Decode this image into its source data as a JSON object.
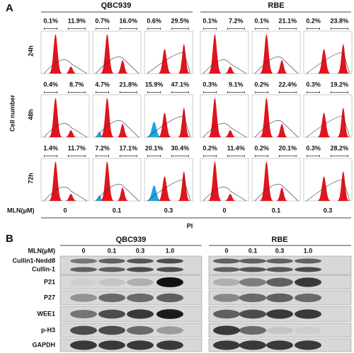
{
  "panel_a": {
    "label": "A",
    "groups": [
      "QBC939",
      "RBE"
    ],
    "y_label": "Cell number",
    "x_label": "PI",
    "dose_label": "MLN(μM)",
    "doses": [
      "0",
      "0.1",
      "0.3",
      "0",
      "0.1",
      "0.3"
    ],
    "rows": [
      {
        "time": "24h",
        "cells": [
          [
            "0.1%",
            "11.9%"
          ],
          [
            "0.7%",
            "16.0%"
          ],
          [
            "0.6%",
            "29.5%"
          ],
          [
            "0.1%",
            "7.2%"
          ],
          [
            "0.1%",
            "21.1%"
          ],
          [
            "0.2%",
            "23.8%"
          ]
        ]
      },
      {
        "time": "48h",
        "cells": [
          [
            "0.4%",
            "8.7%"
          ],
          [
            "4.7%",
            "21.8%"
          ],
          [
            "15.9%",
            "47.1%"
          ],
          [
            "0.3%",
            "9.1%"
          ],
          [
            "0.2%",
            "22.4%"
          ],
          [
            "0.3%",
            "19.2%"
          ]
        ]
      },
      {
        "time": "72h",
        "cells": [
          [
            "1.4%",
            "11.7%"
          ],
          [
            "7.2%",
            "17.1%"
          ],
          [
            "20.1%",
            "30.4%"
          ],
          [
            "0.2%",
            "11.4%"
          ],
          [
            "0.2%",
            "20.1%"
          ],
          [
            "0.3%",
            "28.2%"
          ]
        ]
      }
    ]
  },
  "panel_b": {
    "label": "B",
    "groups": [
      "QBC939",
      "RBE"
    ],
    "dose_label": "MLN(μM)",
    "doses": [
      "0",
      "0.1",
      "0.3",
      "1.0",
      "0",
      "0.1",
      "0.3",
      "1.0"
    ],
    "proteins": [
      "Cullin1-Nedd8",
      "Cullin-1",
      "P21",
      "P27",
      "WEE1",
      "p-H3",
      "GAPDH"
    ]
  }
}
